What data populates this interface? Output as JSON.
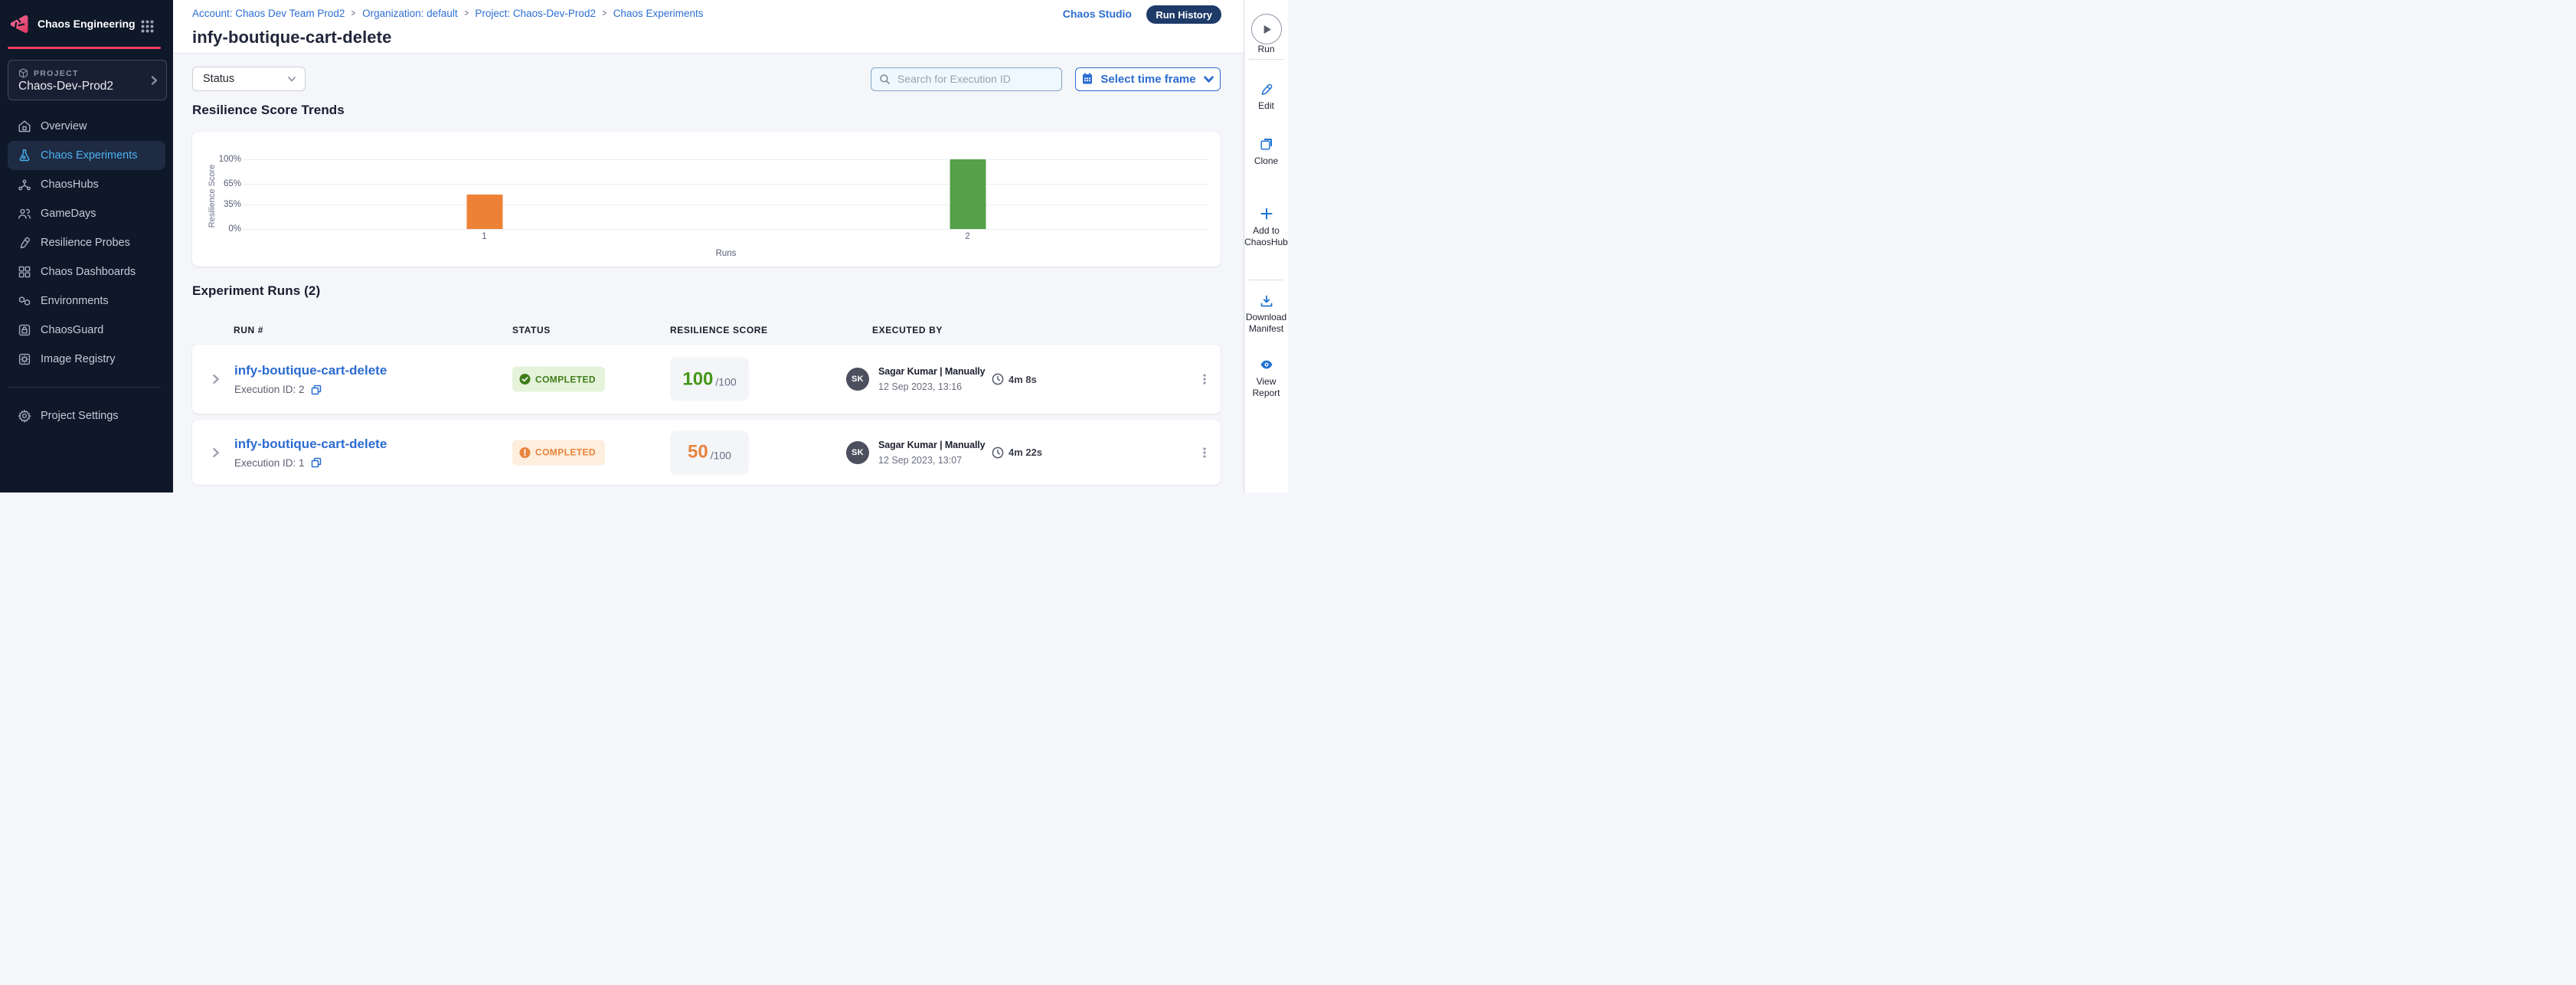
{
  "brand": {
    "app_title": "Chaos Engineering",
    "accent_pink": "#f23e62"
  },
  "sidebar": {
    "project_label": "PROJECT",
    "project_name": "Chaos-Dev-Prod2",
    "items": [
      {
        "label": "Overview",
        "icon": "home-icon",
        "active": false
      },
      {
        "label": "Chaos Experiments",
        "icon": "flask-icon",
        "active": true
      },
      {
        "label": "ChaosHubs",
        "icon": "network-icon",
        "active": false
      },
      {
        "label": "GameDays",
        "icon": "people-icon",
        "active": false
      },
      {
        "label": "Resilience Probes",
        "icon": "probe-icon",
        "active": false
      },
      {
        "label": "Chaos Dashboards",
        "icon": "dashboard-icon",
        "active": false
      },
      {
        "label": "Environments",
        "icon": "hexagons-icon",
        "active": false
      },
      {
        "label": "ChaosGuard",
        "icon": "lock-icon",
        "active": false
      },
      {
        "label": "Image Registry",
        "icon": "registry-icon",
        "active": false
      }
    ],
    "footer_item": {
      "label": "Project Settings",
      "icon": "gear-icon"
    }
  },
  "header": {
    "breadcrumbs": [
      {
        "label": "Account: Chaos Dev Team Prod2"
      },
      {
        "label": "Organization: default"
      },
      {
        "label": "Project: Chaos-Dev-Prod2"
      },
      {
        "label": "Chaos Experiments"
      }
    ],
    "title": "infy-boutique-cart-delete",
    "chaos_studio_label": "Chaos Studio",
    "run_history_label": "Run History"
  },
  "filters": {
    "status_label": "Status",
    "search_placeholder": "Search for Execution ID",
    "timeframe_label": "Select time frame"
  },
  "chart_data": {
    "type": "bar",
    "title": "Resilience Score Trends",
    "categories": [
      "1",
      "2"
    ],
    "values": [
      50,
      100
    ],
    "bar_colors": [
      "#ed8237",
      "#56a049"
    ],
    "xlabel": "Runs",
    "ylabel": "Resilience Score",
    "ylim": [
      0,
      100
    ],
    "yticks": [
      0,
      35,
      65,
      100
    ],
    "ytick_labels": [
      "0%",
      "35%",
      "65%",
      "100%"
    ],
    "grid": true,
    "legend": false
  },
  "runs": {
    "heading": "Experiment Runs (2)",
    "columns": [
      "RUN #",
      "STATUS",
      "RESILIENCE SCORE",
      "EXECUTED BY"
    ],
    "rows": [
      {
        "name": "infy-boutique-cart-delete",
        "execution_label": "Execution ID: 2",
        "status": "COMPLETED",
        "status_variant": "success",
        "score": "100",
        "score_denominator": "/100",
        "avatar_initials": "SK",
        "executed_by": "Sagar Kumar | Manually",
        "executed_at": "12 Sep 2023, 13:16",
        "duration": "4m 8s"
      },
      {
        "name": "infy-boutique-cart-delete",
        "execution_label": "Execution ID: 1",
        "status": "COMPLETED",
        "status_variant": "warning",
        "score": "50",
        "score_denominator": "/100",
        "avatar_initials": "SK",
        "executed_by": "Sagar Kumar | Manually",
        "executed_at": "12 Sep 2023, 13:07",
        "duration": "4m 22s"
      }
    ]
  },
  "action_bar": {
    "run_label": "Run",
    "items": [
      {
        "label": "Edit",
        "icon": "pencil-icon"
      },
      {
        "label": "Clone",
        "icon": "clone-icon"
      },
      {
        "label": "Add to ChaosHub",
        "icon": "plus-icon"
      },
      {
        "label": "Download Manifest",
        "icon": "download-icon"
      },
      {
        "label": "View Report",
        "icon": "eye-icon"
      }
    ],
    "status_colors": {
      "success": "#3e7d19",
      "warning": "#e8833c"
    }
  }
}
